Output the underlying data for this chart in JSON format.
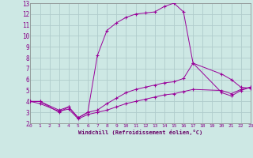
{
  "xlabel": "Windchill (Refroidissement éolien,°C)",
  "background_color": "#cde8e4",
  "grid_color": "#b0cccc",
  "line_color": "#990099",
  "xlim": [
    0,
    23
  ],
  "ylim": [
    2,
    13
  ],
  "xticks": [
    0,
    1,
    2,
    3,
    4,
    5,
    6,
    7,
    8,
    9,
    10,
    11,
    12,
    13,
    14,
    15,
    16,
    17,
    18,
    19,
    20,
    21,
    22,
    23
  ],
  "yticks": [
    2,
    3,
    4,
    5,
    6,
    7,
    8,
    9,
    10,
    11,
    12,
    13
  ],
  "series1_x": [
    0,
    1,
    3,
    4,
    5,
    6,
    7,
    8,
    9,
    10,
    11,
    12,
    13,
    14,
    15,
    16,
    17,
    20,
    21,
    22,
    23
  ],
  "series1_y": [
    4,
    4,
    3,
    3.5,
    2.5,
    3,
    8.2,
    10.5,
    11.2,
    11.7,
    12.0,
    12.1,
    12.2,
    12.7,
    13.0,
    12.2,
    7.5,
    6.5,
    6.0,
    5.3,
    5.2
  ],
  "series2_x": [
    0,
    1,
    3,
    4,
    5,
    6,
    7,
    8,
    9,
    10,
    11,
    12,
    13,
    14,
    15,
    16,
    17,
    20,
    21,
    22,
    23
  ],
  "series2_y": [
    4,
    4,
    3.2,
    3.5,
    2.5,
    3.0,
    3.2,
    3.8,
    4.3,
    4.8,
    5.1,
    5.3,
    5.5,
    5.7,
    5.8,
    6.1,
    7.5,
    4.8,
    4.5,
    5.0,
    5.3
  ],
  "series3_x": [
    0,
    1,
    3,
    4,
    5,
    6,
    7,
    8,
    9,
    10,
    11,
    12,
    13,
    14,
    15,
    16,
    17,
    20,
    21,
    22,
    23
  ],
  "series3_y": [
    4,
    3.8,
    3.1,
    3.3,
    2.4,
    2.8,
    3.0,
    3.2,
    3.5,
    3.8,
    4.0,
    4.2,
    4.4,
    4.6,
    4.7,
    4.9,
    5.1,
    5.0,
    4.7,
    5.1,
    5.3
  ]
}
